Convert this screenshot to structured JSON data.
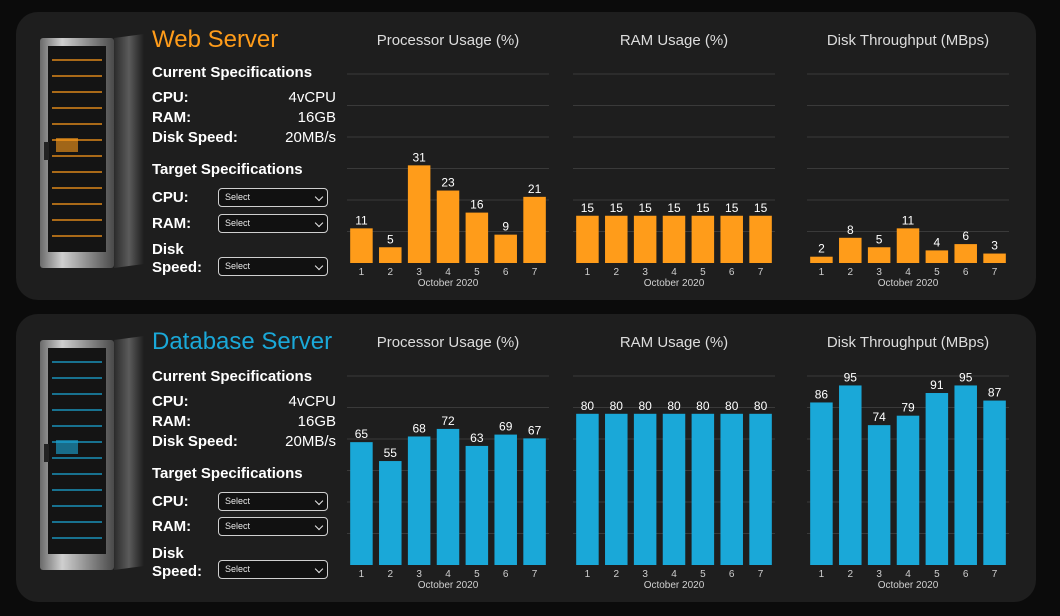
{
  "x_axis_label": "October 2020",
  "select_placeholder": "Select",
  "panels": [
    {
      "title": "Web Server",
      "accent": "#ff9c1a",
      "current_heading": "Current Specifications",
      "specs": [
        {
          "label": "CPU:",
          "value": "4vCPU"
        },
        {
          "label": "RAM:",
          "value": "16GB"
        },
        {
          "label": "Disk Speed:",
          "value": "20MB/s"
        }
      ],
      "target_heading": "Target Specifications",
      "targets": [
        {
          "label": "CPU:",
          "value": "Select"
        },
        {
          "label": "RAM:",
          "value": "Select"
        },
        {
          "label": "Disk Speed:",
          "value": "Select"
        }
      ],
      "charts": [
        {
          "title": "Processor Usage (%)",
          "categories": [
            "1",
            "2",
            "3",
            "4",
            "5",
            "6",
            "7"
          ],
          "values": [
            11,
            5,
            31,
            23,
            16,
            9,
            21
          ]
        },
        {
          "title": "RAM Usage (%)",
          "categories": [
            "1",
            "2",
            "3",
            "4",
            "5",
            "6",
            "7"
          ],
          "values": [
            15,
            15,
            15,
            15,
            15,
            15,
            15
          ]
        },
        {
          "title": "Disk Throughput (MBps)",
          "categories": [
            "1",
            "2",
            "3",
            "4",
            "5",
            "6",
            "7"
          ],
          "values": [
            2,
            8,
            5,
            11,
            4,
            6,
            3
          ]
        }
      ]
    },
    {
      "title": "Database Server",
      "accent": "#1aa8d8",
      "current_heading": "Current Specifications",
      "specs": [
        {
          "label": "CPU:",
          "value": "4vCPU"
        },
        {
          "label": "RAM:",
          "value": "16GB"
        },
        {
          "label": "Disk Speed:",
          "value": "20MB/s"
        }
      ],
      "target_heading": "Target Specifications",
      "targets": [
        {
          "label": "CPU:",
          "value": "Select"
        },
        {
          "label": "RAM:",
          "value": "Select"
        },
        {
          "label": "Disk Speed:",
          "value": "Select"
        }
      ],
      "charts": [
        {
          "title": "Processor Usage (%)",
          "categories": [
            "1",
            "2",
            "3",
            "4",
            "5",
            "6",
            "7"
          ],
          "values": [
            65,
            55,
            68,
            72,
            63,
            69,
            67
          ]
        },
        {
          "title": "RAM Usage (%)",
          "categories": [
            "1",
            "2",
            "3",
            "4",
            "5",
            "6",
            "7"
          ],
          "values": [
            80,
            80,
            80,
            80,
            80,
            80,
            80
          ]
        },
        {
          "title": "Disk Throughput (MBps)",
          "categories": [
            "1",
            "2",
            "3",
            "4",
            "5",
            "6",
            "7"
          ],
          "values": [
            86,
            95,
            74,
            79,
            91,
            95,
            87
          ]
        }
      ]
    }
  ],
  "chart_data": [
    {
      "type": "bar",
      "title": "Processor Usage (%)",
      "xlabel": "October 2020",
      "categories": [
        "1",
        "2",
        "3",
        "4",
        "5",
        "6",
        "7"
      ],
      "values": [
        11,
        5,
        31,
        23,
        16,
        9,
        21
      ]
    },
    {
      "type": "bar",
      "title": "RAM Usage (%)",
      "xlabel": "October 2020",
      "categories": [
        "1",
        "2",
        "3",
        "4",
        "5",
        "6",
        "7"
      ],
      "values": [
        15,
        15,
        15,
        15,
        15,
        15,
        15
      ]
    },
    {
      "type": "bar",
      "title": "Disk Throughput (MBps)",
      "xlabel": "October 2020",
      "categories": [
        "1",
        "2",
        "3",
        "4",
        "5",
        "6",
        "7"
      ],
      "values": [
        2,
        8,
        5,
        11,
        4,
        6,
        3
      ]
    },
    {
      "type": "bar",
      "title": "Processor Usage (%)",
      "xlabel": "October 2020",
      "categories": [
        "1",
        "2",
        "3",
        "4",
        "5",
        "6",
        "7"
      ],
      "values": [
        65,
        55,
        68,
        72,
        63,
        69,
        67
      ]
    },
    {
      "type": "bar",
      "title": "RAM Usage (%)",
      "xlabel": "October 2020",
      "categories": [
        "1",
        "2",
        "3",
        "4",
        "5",
        "6",
        "7"
      ],
      "values": [
        80,
        80,
        80,
        80,
        80,
        80,
        80
      ]
    },
    {
      "type": "bar",
      "title": "Disk Throughput (MBps)",
      "xlabel": "October 2020",
      "categories": [
        "1",
        "2",
        "3",
        "4",
        "5",
        "6",
        "7"
      ],
      "values": [
        86,
        95,
        74,
        79,
        91,
        95,
        87
      ]
    }
  ]
}
